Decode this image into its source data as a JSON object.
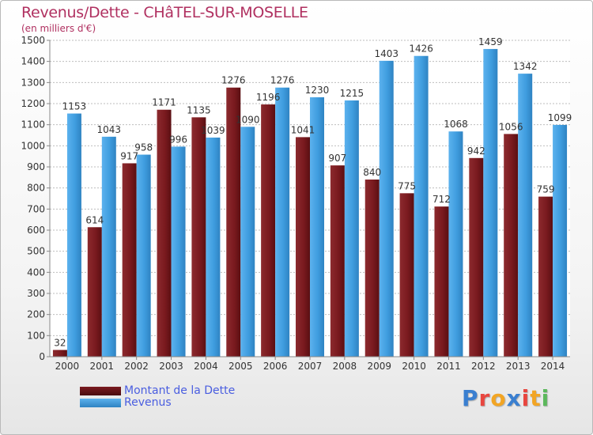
{
  "title": "Revenus/Dette - CHâTEL-SUR-MOSELLE",
  "subtitle": "(en milliers d'€)",
  "chart_data": {
    "type": "bar",
    "categories": [
      "2000",
      "2001",
      "2002",
      "2003",
      "2004",
      "2005",
      "2006",
      "2007",
      "2008",
      "2009",
      "2010",
      "2011",
      "2012",
      "2013",
      "2014"
    ],
    "series": [
      {
        "name": "Montant de la Dette",
        "color": "#7a1a1f",
        "values": [
          32,
          614,
          917,
          1171,
          1135,
          1276,
          1196,
          1041,
          907,
          840,
          775,
          712,
          942,
          1056,
          759
        ],
        "labels": [
          "32",
          "614",
          "917",
          "1171",
          "1135",
          "1276",
          "1196",
          "1041",
          "907",
          "840",
          "775",
          "712",
          "942",
          "1056",
          "759"
        ]
      },
      {
        "name": "Revenus",
        "color": "#3f9ddf",
        "values": [
          1153,
          1043,
          958,
          996,
          1039,
          1090,
          1276,
          1230,
          1215,
          1403,
          1426,
          1068,
          1459,
          1342,
          1099
        ],
        "labels": [
          "1153",
          "1043",
          "958",
          "996",
          "1039",
          "1090",
          "1276",
          "1230",
          "1215",
          "1403",
          "1426",
          "1068",
          "1459",
          "1342",
          "1099"
        ]
      }
    ],
    "ylim": [
      0,
      1500
    ],
    "yticks": [
      0,
      100,
      200,
      300,
      400,
      500,
      600,
      700,
      800,
      900,
      1000,
      1100,
      1200,
      1300,
      1400,
      1500
    ],
    "grid": true,
    "legend_position": "bottom-left"
  },
  "legend": {
    "dette": "Montant de la Dette",
    "revenus": "Revenus"
  },
  "logo": {
    "letters": [
      "P",
      "r",
      "o",
      "x",
      "i",
      "t",
      "i"
    ],
    "colors": [
      "#3a7fd0",
      "#e8463f",
      "#f2a524",
      "#3a7fd0",
      "#e8463f",
      "#f2a524",
      "#5cb85c"
    ]
  }
}
